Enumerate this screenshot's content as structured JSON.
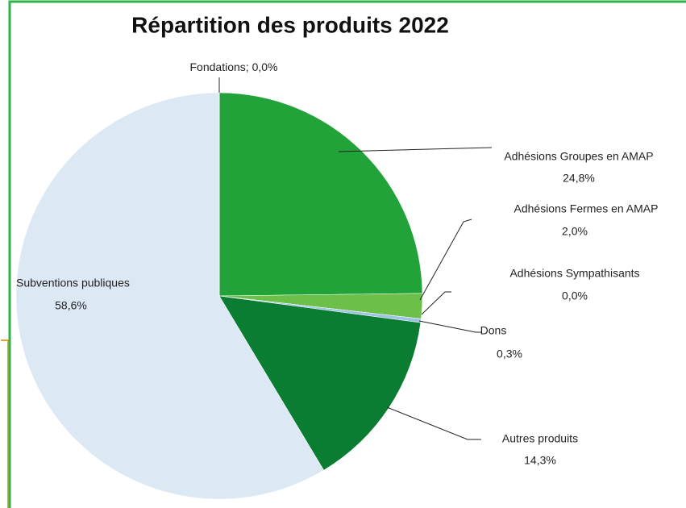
{
  "chart_data": {
    "type": "pie",
    "title": "Répartition des produits 2022",
    "categories": [
      "Adhésions Groupes en AMAP",
      "Adhésions Fermes en AMAP",
      "Adhésions Sympathisants",
      "Dons",
      "Autres produits",
      "Subventions publiques",
      "Fondations"
    ],
    "values": [
      24.8,
      2.0,
      0.0,
      0.3,
      14.3,
      58.6,
      0.0
    ],
    "value_labels": [
      "24,8%",
      "2,0%",
      "0,0%",
      "0,3%",
      "14,3%",
      "58,6%",
      "0,0%"
    ],
    "colors": [
      "#21a33a",
      "#6cc04a",
      "#a9d18e",
      "#9dc3e6",
      "#0b7d32",
      "#dde8f5",
      "#c5e0b4"
    ],
    "label_separator": "; "
  }
}
